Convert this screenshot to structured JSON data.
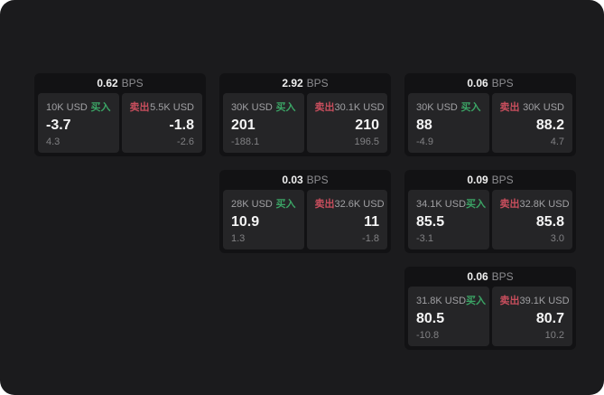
{
  "colors": {
    "page_bg": "#1b1b1d",
    "card_bg": "#121214",
    "panel_bg": "#252527",
    "buy": "#3ba465",
    "sell": "#c84e5d"
  },
  "labels": {
    "bps": "BPS",
    "buy": "买入",
    "sell": "卖出"
  },
  "cards": [
    {
      "bps": "0.62",
      "buy": {
        "amount": "10K USD",
        "value": "-3.7",
        "sub": "4.3"
      },
      "sell": {
        "amount": "5.5K USD",
        "value": "-1.8",
        "sub": "-2.6"
      }
    },
    {
      "bps": "2.92",
      "buy": {
        "amount": "30K USD",
        "value": "201",
        "sub": "-188.1"
      },
      "sell": {
        "amount": "30.1K USD",
        "value": "210",
        "sub": "196.5"
      }
    },
    {
      "bps": "0.06",
      "buy": {
        "amount": "30K USD",
        "value": "88",
        "sub": "-4.9"
      },
      "sell": {
        "amount": "30K USD",
        "value": "88.2",
        "sub": "4.7"
      }
    },
    {
      "bps": "0.03",
      "buy": {
        "amount": "28K USD",
        "value": "10.9",
        "sub": "1.3"
      },
      "sell": {
        "amount": "32.6K USD",
        "value": "11",
        "sub": "-1.8"
      }
    },
    {
      "bps": "0.09",
      "buy": {
        "amount": "34.1K USD",
        "value": "85.5",
        "sub": "-3.1"
      },
      "sell": {
        "amount": "32.8K USD",
        "value": "85.8",
        "sub": "3.0"
      }
    },
    {
      "bps": "0.06",
      "buy": {
        "amount": "31.8K USD",
        "value": "80.5",
        "sub": "-10.8"
      },
      "sell": {
        "amount": "39.1K USD",
        "value": "80.7",
        "sub": "10.2"
      }
    }
  ]
}
